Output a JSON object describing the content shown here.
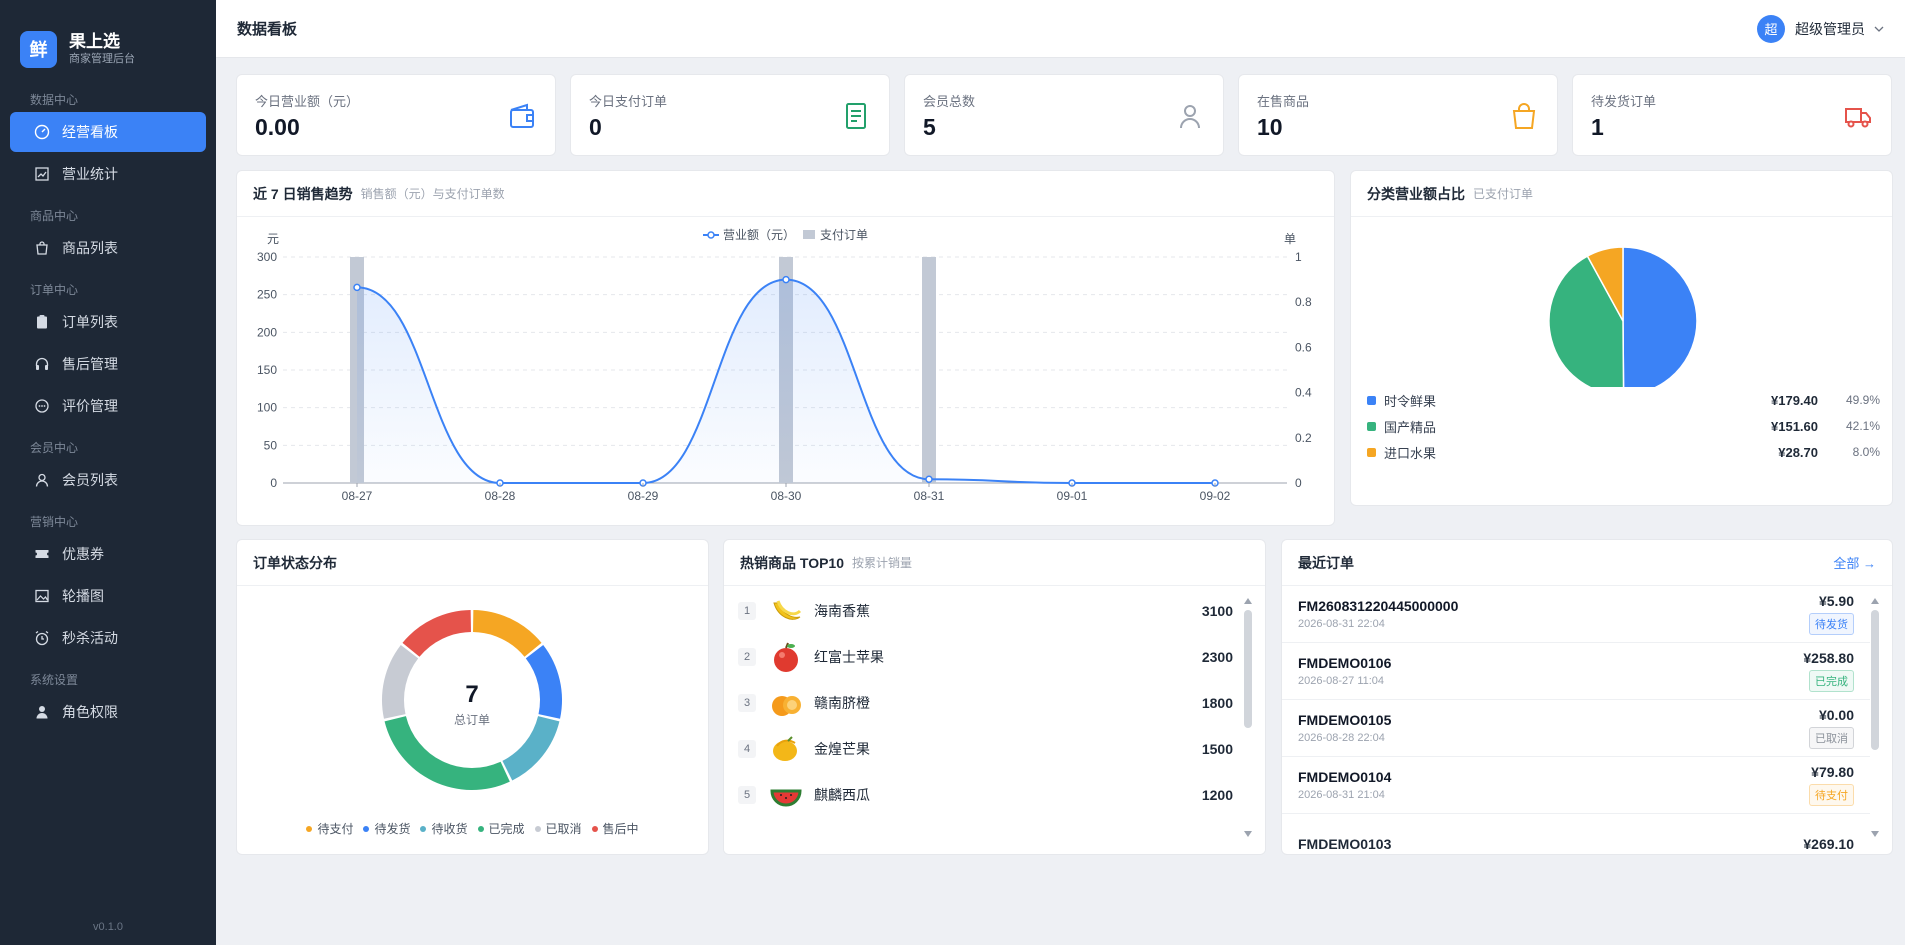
{
  "brand": {
    "logo": "鲜",
    "name": "果上选",
    "sub": "商家管理后台"
  },
  "nav": [
    {
      "section": "数据中心",
      "items": [
        {
          "label": "经营看板",
          "icon": "dashboard-icon",
          "active": true
        },
        {
          "label": "营业统计",
          "icon": "chart-icon"
        }
      ]
    },
    {
      "section": "商品中心",
      "items": [
        {
          "label": "商品列表",
          "icon": "bag-icon"
        }
      ]
    },
    {
      "section": "订单中心",
      "items": [
        {
          "label": "订单列表",
          "icon": "clipboard-icon"
        },
        {
          "label": "售后管理",
          "icon": "headset-icon"
        },
        {
          "label": "评价管理",
          "icon": "comment-icon"
        }
      ]
    },
    {
      "section": "会员中心",
      "items": [
        {
          "label": "会员列表",
          "icon": "user-icon"
        }
      ]
    },
    {
      "section": "营销中心",
      "items": [
        {
          "label": "优惠券",
          "icon": "ticket-icon"
        },
        {
          "label": "轮播图",
          "icon": "image-icon"
        },
        {
          "label": "秒杀活动",
          "icon": "alarm-icon"
        }
      ]
    },
    {
      "section": "系统设置",
      "items": [
        {
          "label": "角色权限",
          "icon": "person-icon"
        }
      ]
    }
  ],
  "version": "v0.1.0",
  "header": {
    "title": "数据看板",
    "avatar": "超",
    "user": "超级管理员"
  },
  "kpis": [
    {
      "label": "今日营业额（元）",
      "value": "0.00",
      "icon": "wallet-icon",
      "color": "#3b82f6"
    },
    {
      "label": "今日支付订单",
      "value": "0",
      "icon": "receipt-icon",
      "color": "#22a06b"
    },
    {
      "label": "会员总数",
      "value": "5",
      "icon": "user-icon",
      "color": "#9ca3af"
    },
    {
      "label": "在售商品",
      "value": "10",
      "icon": "bag-icon",
      "color": "#f5a623"
    },
    {
      "label": "待发货订单",
      "value": "1",
      "icon": "truck-icon",
      "color": "#e5534b"
    }
  ],
  "trend": {
    "title": "近 7 日销售趋势",
    "sub": "销售额（元）与支付订单数"
  },
  "chart_data": [
    {
      "type": "line",
      "title": "近 7 日销售趋势",
      "categories": [
        "08-27",
        "08-28",
        "08-29",
        "08-30",
        "08-31",
        "09-01",
        "09-02"
      ],
      "series": [
        {
          "name": "营业额（元）",
          "type": "line",
          "axis": "left",
          "values": [
            259.7,
            0,
            0,
            270,
            5,
            0,
            0
          ]
        },
        {
          "name": "支付订单",
          "type": "bar",
          "axis": "right",
          "values": [
            1,
            0,
            0,
            1,
            1,
            0,
            0
          ]
        }
      ],
      "ylabel": "元",
      "y2label": "单",
      "ylim": [
        0,
        300
      ],
      "y2lim": [
        0,
        1
      ],
      "yticks": [
        0,
        50,
        100,
        150,
        200,
        250,
        300
      ],
      "y2ticks": [
        0,
        0.2,
        0.4,
        0.6,
        0.8,
        1
      ],
      "legend": "top-center",
      "grid": true
    },
    {
      "type": "pie",
      "title": "分类营业额占比",
      "categories": [
        "时令鲜果",
        "国产精品",
        "进口水果"
      ],
      "values": [
        179.4,
        151.6,
        28.7
      ],
      "colors": [
        "#3b82f6",
        "#36b37e",
        "#f5a623"
      ]
    },
    {
      "type": "pie",
      "title": "订单状态分布",
      "center_value": "7",
      "center_label": "总订单",
      "categories": [
        "待支付",
        "待发货",
        "待收货",
        "已完成",
        "已取消",
        "售后中"
      ],
      "values": [
        1,
        1,
        1,
        2,
        1,
        1
      ],
      "colors": [
        "#f5a623",
        "#3b82f6",
        "#5ab1c8",
        "#36b37e",
        "#c7cbd3",
        "#e5534b"
      ]
    }
  ],
  "pie": {
    "title": "分类营业额占比",
    "sub": "已支付订单",
    "rows": [
      {
        "name": "时令鲜果",
        "amount": "¥179.40",
        "pct": "49.9%",
        "color": "#3b82f6"
      },
      {
        "name": "国产精品",
        "amount": "¥151.60",
        "pct": "42.1%",
        "color": "#36b37e"
      },
      {
        "name": "进口水果",
        "amount": "¥28.70",
        "pct": "8.0%",
        "color": "#f5a623"
      }
    ]
  },
  "status": {
    "title": "订单状态分布",
    "total": "7",
    "total_label": "总订单",
    "legend": [
      {
        "name": "待支付",
        "color": "#f5a623"
      },
      {
        "name": "待发货",
        "color": "#3b82f6"
      },
      {
        "name": "待收货",
        "color": "#5ab1c8"
      },
      {
        "name": "已完成",
        "color": "#36b37e"
      },
      {
        "name": "已取消",
        "color": "#c7cbd3"
      },
      {
        "name": "售后中",
        "color": "#e5534b"
      }
    ]
  },
  "hot": {
    "title": "热销商品 TOP10",
    "sub": "按累计销量",
    "items": [
      {
        "rank": "1",
        "name": "海南香蕉",
        "sales": "3100",
        "icon": "banana-icon"
      },
      {
        "rank": "2",
        "name": "红富士苹果",
        "sales": "2300",
        "icon": "apple-icon"
      },
      {
        "rank": "3",
        "name": "赣南脐橙",
        "sales": "1800",
        "icon": "orange-icon"
      },
      {
        "rank": "4",
        "name": "金煌芒果",
        "sales": "1500",
        "icon": "mango-icon"
      },
      {
        "rank": "5",
        "name": "麒麟西瓜",
        "sales": "1200",
        "icon": "watermelon-icon"
      }
    ]
  },
  "orders": {
    "title": "最近订单",
    "all": "全部 →",
    "items": [
      {
        "id": "FM260831220445000000",
        "time": "2026-08-31 22:04",
        "amount": "¥5.90",
        "status": "待发货",
        "color": "#3b82f6"
      },
      {
        "id": "FMDEMO0106",
        "time": "2026-08-27 11:04",
        "amount": "¥258.80",
        "status": "已完成",
        "color": "#36b37e"
      },
      {
        "id": "FMDEMO0105",
        "time": "2026-08-28 22:04",
        "amount": "¥0.00",
        "status": "已取消",
        "color": "#8b919a"
      },
      {
        "id": "FMDEMO0104",
        "time": "2026-08-31 21:04",
        "amount": "¥79.80",
        "status": "待支付",
        "color": "#f5a623"
      }
    ]
  }
}
